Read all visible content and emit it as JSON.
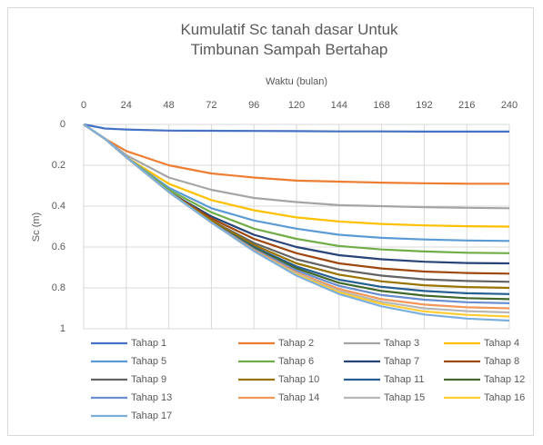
{
  "chart_data": {
    "type": "line",
    "title": "Kumulatif Sc tanah dasar Untuk Timbunan Sampah Bertahap",
    "x_label": "Waktu (bulan)",
    "y_label": "Sc (m)",
    "x": [
      0,
      12,
      24,
      48,
      72,
      96,
      120,
      144,
      168,
      192,
      216,
      240
    ],
    "xlim": [
      0,
      240
    ],
    "xticks": [
      0,
      24,
      48,
      72,
      96,
      120,
      144,
      168,
      192,
      216,
      240
    ],
    "ylim": [
      0,
      1
    ],
    "yticks": [
      0,
      0.2,
      0.4,
      0.6,
      0.8,
      1
    ],
    "y_reversed": true,
    "x_axis_top": true,
    "grid": true,
    "legend": "bottom",
    "series": [
      {
        "name": "Tahap 1",
        "color": "#4472c4",
        "values": [
          0,
          0.02,
          0.025,
          0.03,
          0.031,
          0.032,
          0.033,
          0.034,
          0.034,
          0.035,
          0.035,
          0.035
        ]
      },
      {
        "name": "Tahap 2",
        "color": "#ed7d31",
        "values": [
          0,
          0.07,
          0.13,
          0.2,
          0.24,
          0.26,
          0.275,
          0.28,
          0.285,
          0.288,
          0.29,
          0.29
        ]
      },
      {
        "name": "Tahap 3",
        "color": "#a5a5a5",
        "values": [
          0,
          0.07,
          0.15,
          0.26,
          0.32,
          0.36,
          0.38,
          0.395,
          0.4,
          0.405,
          0.408,
          0.41
        ]
      },
      {
        "name": "Tahap 4",
        "color": "#ffc000",
        "values": [
          0,
          0.07,
          0.16,
          0.29,
          0.37,
          0.42,
          0.455,
          0.475,
          0.487,
          0.494,
          0.498,
          0.5
        ]
      },
      {
        "name": "Tahap 5",
        "color": "#5b9bd5",
        "values": [
          0,
          0.07,
          0.16,
          0.31,
          0.41,
          0.47,
          0.51,
          0.54,
          0.555,
          0.563,
          0.568,
          0.57
        ]
      },
      {
        "name": "Tahap 6",
        "color": "#70ad47",
        "values": [
          0,
          0.07,
          0.16,
          0.32,
          0.43,
          0.51,
          0.56,
          0.595,
          0.612,
          0.622,
          0.628,
          0.63
        ]
      },
      {
        "name": "Tahap 7",
        "color": "#264478",
        "values": [
          0,
          0.07,
          0.16,
          0.33,
          0.45,
          0.54,
          0.6,
          0.64,
          0.66,
          0.672,
          0.678,
          0.68
        ]
      },
      {
        "name": "Tahap 8",
        "color": "#9e480e",
        "values": [
          0,
          0.07,
          0.16,
          0.33,
          0.46,
          0.56,
          0.63,
          0.68,
          0.705,
          0.72,
          0.727,
          0.73
        ]
      },
      {
        "name": "Tahap 9",
        "color": "#636363",
        "values": [
          0,
          0.07,
          0.16,
          0.33,
          0.47,
          0.58,
          0.66,
          0.71,
          0.74,
          0.758,
          0.766,
          0.77
        ]
      },
      {
        "name": "Tahap 10",
        "color": "#997300",
        "values": [
          0,
          0.07,
          0.16,
          0.33,
          0.47,
          0.59,
          0.68,
          0.735,
          0.768,
          0.787,
          0.796,
          0.8
        ]
      },
      {
        "name": "Tahap 11",
        "color": "#255e91",
        "values": [
          0,
          0.07,
          0.16,
          0.33,
          0.48,
          0.6,
          0.695,
          0.76,
          0.795,
          0.815,
          0.826,
          0.83
        ]
      },
      {
        "name": "Tahap 12",
        "color": "#43682b",
        "values": [
          0,
          0.07,
          0.16,
          0.33,
          0.48,
          0.605,
          0.705,
          0.775,
          0.815,
          0.838,
          0.85,
          0.855
        ]
      },
      {
        "name": "Tahap 13",
        "color": "#698ed0",
        "values": [
          0,
          0.07,
          0.16,
          0.33,
          0.48,
          0.61,
          0.715,
          0.79,
          0.835,
          0.858,
          0.87,
          0.875
        ]
      },
      {
        "name": "Tahap 14",
        "color": "#f1975a",
        "values": [
          0,
          0.07,
          0.16,
          0.33,
          0.48,
          0.615,
          0.725,
          0.805,
          0.855,
          0.882,
          0.895,
          0.9
        ]
      },
      {
        "name": "Tahap 15",
        "color": "#b7b7b7",
        "values": [
          0,
          0.07,
          0.16,
          0.33,
          0.48,
          0.62,
          0.73,
          0.815,
          0.868,
          0.9,
          0.914,
          0.92
        ]
      },
      {
        "name": "Tahap 16",
        "color": "#ffcd33",
        "values": [
          0,
          0.07,
          0.16,
          0.33,
          0.48,
          0.62,
          0.735,
          0.822,
          0.878,
          0.915,
          0.932,
          0.94
        ]
      },
      {
        "name": "Tahap 17",
        "color": "#7cafdd",
        "values": [
          0,
          0.07,
          0.16,
          0.33,
          0.48,
          0.62,
          0.74,
          0.83,
          0.89,
          0.93,
          0.95,
          0.96
        ]
      }
    ]
  }
}
